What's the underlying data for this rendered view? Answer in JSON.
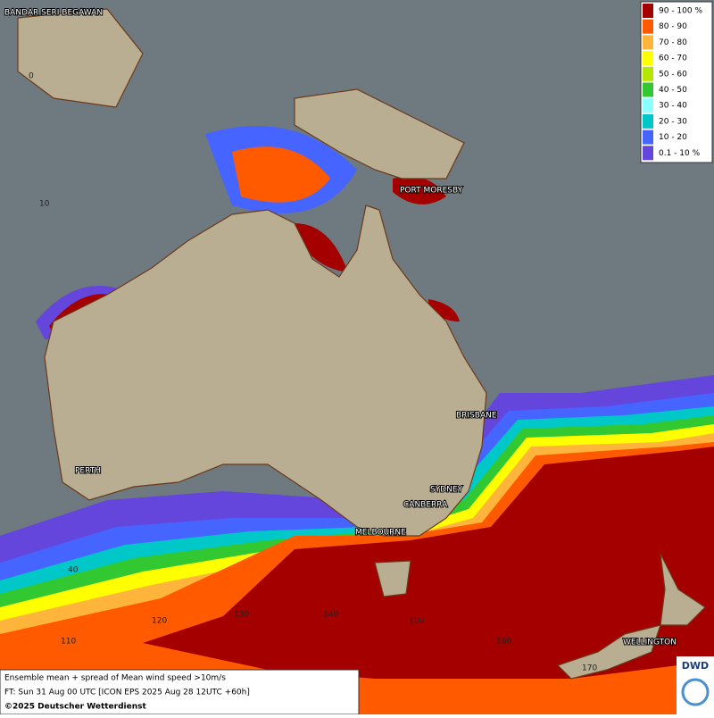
{
  "map": {
    "legend": [
      {
        "label": "90 - 100 %",
        "color": "#a40000"
      },
      {
        "label": "80 - 90",
        "color": "#ff5a00"
      },
      {
        "label": "70 - 80",
        "color": "#ffb43c"
      },
      {
        "label": "60 - 70",
        "color": "#ffff00"
      },
      {
        "label": "50 - 60",
        "color": "#b4e600"
      },
      {
        "label": "40 - 50",
        "color": "#32c832"
      },
      {
        "label": "30 - 40",
        "color": "#8cffff"
      },
      {
        "label": "20 - 30",
        "color": "#00c8c8"
      },
      {
        "label": "10 - 20",
        "color": "#4664ff"
      },
      {
        "label": "0.1 - 10 %",
        "color": "#6446dc"
      }
    ],
    "places": [
      "BANDAR SERI BEGAWAN",
      "PORT MORESBY",
      "BRISBANE",
      "SYDNEY",
      "CANBERRA",
      "MELBOURNE",
      "PERTH",
      "WELLINGTON"
    ],
    "grid_labels": [
      "0",
      "10",
      "40",
      "110",
      "120",
      "130",
      "140",
      "150",
      "160",
      "170"
    ],
    "footer": {
      "line1": "Ensemble mean + spread of Mean wind speed >10m/s",
      "line2": "FT: Sun 31 Aug 00 UTC [ICON EPS 2025 Aug 28 12UTC +60h]",
      "line3": "©2025 Deutscher Wetterdienst"
    },
    "logo": "DWD"
  }
}
